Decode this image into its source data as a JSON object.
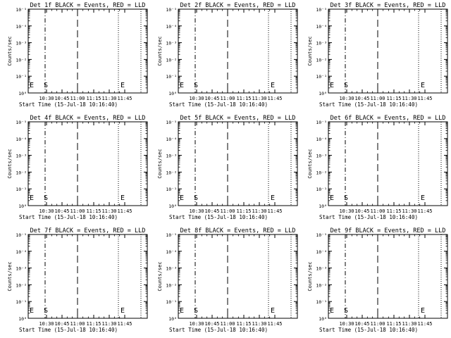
{
  "chart_data": [
    {
      "type": "line",
      "title": "Det 1f BLACK = Events, RED = LLD",
      "xlabel": "Start Time (15-Jul-18 10:16:40)",
      "ylabel": "Counts/sec",
      "x_tick_labels": [
        "10:30",
        "10:45",
        "11:00",
        "11:15",
        "11:30",
        "11:45"
      ],
      "y_tick_labels": [
        "10⁰",
        "10⁻¹",
        "10⁻²",
        "10⁻³",
        "10⁻⁴",
        "10⁻⁵"
      ],
      "markers": [
        "E",
        "S",
        "E"
      ],
      "series": []
    },
    {
      "type": "line",
      "title": "Det 2f BLACK = Events, RED = LLD",
      "xlabel": "Start Time (15-Jul-18 10:16:40)",
      "ylabel": "Counts/sec",
      "x_tick_labels": [
        "10:30",
        "10:45",
        "11:00",
        "11:15",
        "11:30",
        "11:45"
      ],
      "y_tick_labels": [
        "10⁰",
        "10⁻¹",
        "10⁻²",
        "10⁻³",
        "10⁻⁴",
        "10⁻⁵"
      ],
      "markers": [
        "E",
        "S",
        "E"
      ],
      "series": []
    },
    {
      "type": "line",
      "title": "Det 3f BLACK = Events, RED = LLD",
      "xlabel": "Start Time (15-Jul-18 10:16:40)",
      "ylabel": "Counts/sec",
      "x_tick_labels": [
        "10:30",
        "10:45",
        "11:00",
        "11:15",
        "11:30",
        "11:45"
      ],
      "y_tick_labels": [
        "10⁰",
        "10⁻¹",
        "10⁻²",
        "10⁻³",
        "10⁻⁴",
        "10⁻⁵"
      ],
      "markers": [
        "E",
        "S",
        "E"
      ],
      "series": []
    },
    {
      "type": "line",
      "title": "Det 4f BLACK = Events, RED = LLD",
      "xlabel": "Start Time (15-Jul-18 10:16:40)",
      "ylabel": "Counts/sec",
      "x_tick_labels": [
        "10:30",
        "10:45",
        "11:00",
        "11:15",
        "11:30",
        "11:45"
      ],
      "y_tick_labels": [
        "10⁰",
        "10⁻¹",
        "10⁻²",
        "10⁻³",
        "10⁻⁴",
        "10⁻⁵"
      ],
      "markers": [
        "E",
        "S",
        "E"
      ],
      "series": []
    },
    {
      "type": "line",
      "title": "Det 5f BLACK = Events, RED = LLD",
      "xlabel": "Start Time (15-Jul-18 10:16:40)",
      "ylabel": "Counts/sec",
      "x_tick_labels": [
        "10:30",
        "10:45",
        "11:00",
        "11:15",
        "11:30",
        "11:45"
      ],
      "y_tick_labels": [
        "10⁰",
        "10⁻¹",
        "10⁻²",
        "10⁻³",
        "10⁻⁴",
        "10⁻⁵"
      ],
      "markers": [
        "E",
        "S",
        "E"
      ],
      "series": []
    },
    {
      "type": "line",
      "title": "Det 6f BLACK = Events, RED = LLD",
      "xlabel": "Start Time (15-Jul-18 10:16:40)",
      "ylabel": "Counts/sec",
      "x_tick_labels": [
        "10:30",
        "10:45",
        "11:00",
        "11:15",
        "11:30",
        "11:45"
      ],
      "y_tick_labels": [
        "10⁰",
        "10⁻¹",
        "10⁻²",
        "10⁻³",
        "10⁻⁴",
        "10⁻⁵"
      ],
      "markers": [
        "E",
        "S",
        "E"
      ],
      "series": []
    },
    {
      "type": "line",
      "title": "Det 7f BLACK = Events, RED = LLD",
      "xlabel": "Start Time (15-Jul-18 10:16:40)",
      "ylabel": "Counts/sec",
      "x_tick_labels": [
        "10:30",
        "10:45",
        "11:00",
        "11:15",
        "11:30",
        "11:45"
      ],
      "y_tick_labels": [
        "10⁰",
        "10⁻¹",
        "10⁻²",
        "10⁻³",
        "10⁻⁴",
        "10⁻⁵"
      ],
      "markers": [
        "E",
        "S",
        "E"
      ],
      "series": []
    },
    {
      "type": "line",
      "title": "Det 8f BLACK = Events, RED = LLD",
      "xlabel": "Start Time (15-Jul-18 10:16:40)",
      "ylabel": "Counts/sec",
      "x_tick_labels": [
        "10:30",
        "10:45",
        "11:00",
        "11:15",
        "11:30",
        "11:45"
      ],
      "y_tick_labels": [
        "10⁰",
        "10⁻¹",
        "10⁻²",
        "10⁻³",
        "10⁻⁴",
        "10⁻⁵"
      ],
      "markers": [
        "E",
        "S",
        "E"
      ],
      "series": []
    },
    {
      "type": "line",
      "title": "Det 9f BLACK = Events, RED = LLD",
      "xlabel": "Start Time (15-Jul-18 10:16:40)",
      "ylabel": "Counts/sec",
      "x_tick_labels": [
        "10:30",
        "10:45",
        "11:00",
        "11:15",
        "11:30",
        "11:45"
      ],
      "y_tick_labels": [
        "10⁰",
        "10⁻¹",
        "10⁻²",
        "10⁻³",
        "10⁻⁴",
        "10⁻⁵"
      ],
      "markers": [
        "E",
        "S",
        "E"
      ],
      "series": []
    }
  ]
}
